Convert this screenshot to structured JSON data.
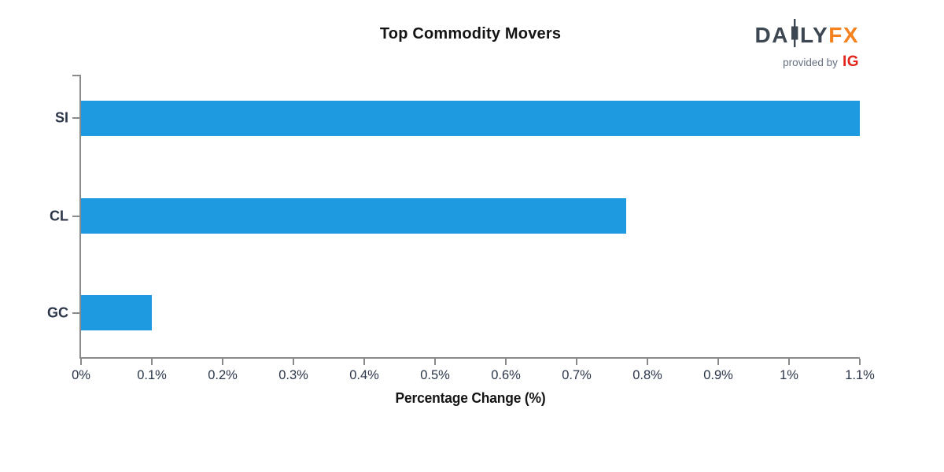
{
  "header": {
    "logo": {
      "brand_part1": "DA",
      "brand_part2": "LY",
      "brand_accent": "FX",
      "tagline": "provided by",
      "tagline_brand": "IG"
    }
  },
  "chart_data": {
    "type": "bar",
    "orientation": "horizontal",
    "title": "Top Commodity Movers",
    "categories": [
      "SI",
      "CL",
      "GC"
    ],
    "values": [
      1.1,
      0.77,
      0.1
    ],
    "xlabel": "Percentage Change (%)",
    "ylabel": "",
    "xlim": [
      0,
      1.1
    ],
    "xticks": [
      0,
      0.1,
      0.2,
      0.3,
      0.4,
      0.5,
      0.6,
      0.7,
      0.8,
      0.9,
      1.0,
      1.1
    ],
    "xtick_labels": [
      "0%",
      "0.1%",
      "0.2%",
      "0.3%",
      "0.4%",
      "0.5%",
      "0.6%",
      "0.7%",
      "0.8%",
      "0.9%",
      "1%",
      "1.1%"
    ],
    "grid": false,
    "legend": false,
    "bar_color": "#1E9BE0",
    "axis_color": "#8A8A8A",
    "tick_label_color": "#2B3649",
    "category_label_color": "#2B3649"
  },
  "colors": {
    "logo_dark": "#3D4752",
    "logo_accent_orange": "#F5821F",
    "logo_ig_red": "#E1251B",
    "logo_tagline_gray": "#667080",
    "background": "#FFFFFF"
  }
}
